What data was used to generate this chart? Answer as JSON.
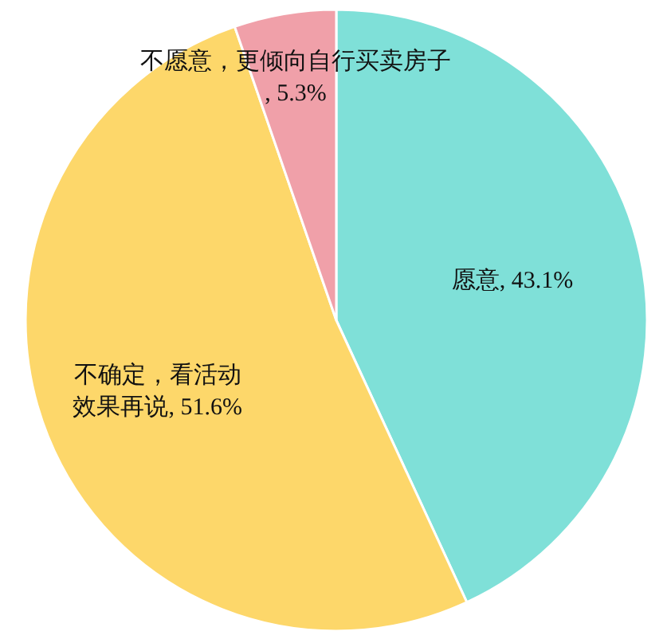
{
  "chart_data": {
    "type": "pie",
    "categories": [
      "愿意",
      "不确定，看活动效果再说",
      "不愿意，更倾向自行买卖房子"
    ],
    "values": [
      43.1,
      51.6,
      5.3
    ],
    "colors": [
      "#7fe0d8",
      "#fdd76a",
      "#f0a0a9"
    ],
    "value_labels": [
      ", 43.1%",
      ", 51.6%",
      ", 5.3%"
    ]
  }
}
